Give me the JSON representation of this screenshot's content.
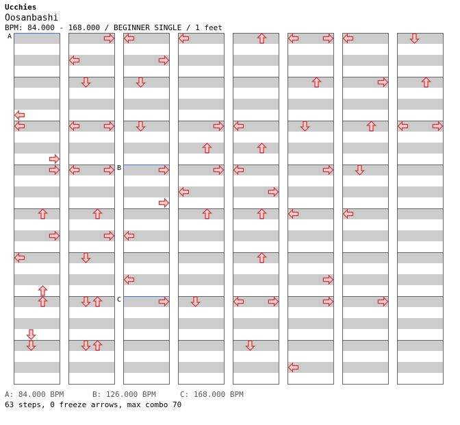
{
  "header": {
    "artist": "Ucchies",
    "song": "Oosanbashi",
    "info": "BPM: 84.000 - 168.000 / BEGINNER SINGLE / 1 feet"
  },
  "colors": {
    "stripe": "#cccccc",
    "border": "#666666",
    "arrow_fill": "#ffcccc",
    "arrow_stroke": "#cc3333",
    "bpm_line": "#4477cc"
  },
  "chart_data": {
    "type": "step-chart",
    "columns": 8,
    "rows_per_column": 32,
    "lanes": [
      "left",
      "down",
      "up",
      "right"
    ],
    "notes_by_column": [
      [
        [
          0,
          3,
          5
        ]
      ],
      [
        [
          0,
          3,
          1
        ]
      ],
      [
        [
          0,
          3,
          1
        ]
      ],
      [
        [
          0,
          3,
          1
        ],
        [
          1,
          3,
          0
        ]
      ],
      [
        [
          0,
          3,
          1
        ]
      ],
      [
        [
          0,
          3,
          1
        ],
        [
          0,
          3,
          3
        ]
      ],
      [
        [
          0,
          3,
          1
        ],
        [
          0,
          3,
          3
        ]
      ],
      [
        [
          0,
          3,
          1
        ],
        [
          0,
          3,
          3
        ]
      ]
    ],
    "notes": [
      [
        0,
        7,
        "left"
      ],
      [
        0,
        8,
        "left"
      ],
      [
        0,
        11,
        "right"
      ],
      [
        0,
        12,
        "right"
      ],
      [
        0,
        16,
        "up"
      ],
      [
        0,
        18,
        "right"
      ],
      [
        0,
        20,
        "left"
      ],
      [
        0,
        23,
        "up"
      ],
      [
        0,
        24,
        "up"
      ],
      [
        0,
        27,
        "down"
      ],
      [
        0,
        28,
        "down"
      ],
      [
        1,
        0,
        "right"
      ],
      [
        1,
        2,
        "left"
      ],
      [
        1,
        4,
        "down"
      ],
      [
        1,
        8,
        "left"
      ],
      [
        1,
        8,
        "right"
      ],
      [
        1,
        12,
        "left"
      ],
      [
        1,
        12,
        "right"
      ],
      [
        1,
        16,
        "up"
      ],
      [
        1,
        18,
        "right"
      ],
      [
        1,
        20,
        "down"
      ],
      [
        1,
        24,
        "down"
      ],
      [
        1,
        24,
        "up"
      ],
      [
        1,
        28,
        "down"
      ],
      [
        1,
        28,
        "up"
      ],
      [
        2,
        0,
        "left"
      ],
      [
        2,
        2,
        "right"
      ],
      [
        2,
        4,
        "down"
      ],
      [
        2,
        8,
        "down"
      ],
      [
        2,
        12,
        "right"
      ],
      [
        2,
        15,
        "right"
      ],
      [
        2,
        18,
        "left"
      ],
      [
        2,
        22,
        "left"
      ],
      [
        2,
        24,
        "right"
      ],
      [
        3,
        0,
        "left"
      ],
      [
        3,
        8,
        "right"
      ],
      [
        3,
        10,
        "up"
      ],
      [
        3,
        12,
        "right"
      ],
      [
        3,
        14,
        "left"
      ],
      [
        3,
        16,
        "up"
      ],
      [
        3,
        24,
        "down"
      ],
      [
        4,
        0,
        "up"
      ],
      [
        4,
        8,
        "left"
      ],
      [
        4,
        10,
        "up"
      ],
      [
        4,
        12,
        "left"
      ],
      [
        4,
        14,
        "right"
      ],
      [
        4,
        16,
        "up"
      ],
      [
        4,
        20,
        "up"
      ],
      [
        4,
        24,
        "left"
      ],
      [
        4,
        24,
        "right"
      ],
      [
        4,
        28,
        "down"
      ],
      [
        5,
        0,
        "left"
      ],
      [
        5,
        0,
        "right"
      ],
      [
        5,
        4,
        "up"
      ],
      [
        5,
        8,
        "down"
      ],
      [
        5,
        12,
        "right"
      ],
      [
        5,
        16,
        "left"
      ],
      [
        5,
        22,
        "right"
      ],
      [
        5,
        24,
        "right"
      ],
      [
        5,
        30,
        "left"
      ],
      [
        6,
        0,
        "left"
      ],
      [
        6,
        4,
        "right"
      ],
      [
        6,
        8,
        "up"
      ],
      [
        6,
        12,
        "down"
      ],
      [
        6,
        16,
        "left"
      ],
      [
        6,
        24,
        "right"
      ],
      [
        7,
        0,
        "down"
      ],
      [
        7,
        4,
        "up"
      ],
      [
        7,
        8,
        "left"
      ],
      [
        7,
        8,
        "right"
      ]
    ],
    "bpm_changes": [
      {
        "label": "A",
        "column": 0,
        "row": 0
      },
      {
        "label": "B",
        "column": 2,
        "row": 12
      },
      {
        "label": "C",
        "column": 2,
        "row": 24
      }
    ]
  },
  "footer": {
    "legend": [
      "A: 84.000 BPM",
      "B: 126.000 BPM",
      "C: 168.000 BPM"
    ],
    "steps": "63 steps, 0 freeze arrows, max combo 70"
  }
}
